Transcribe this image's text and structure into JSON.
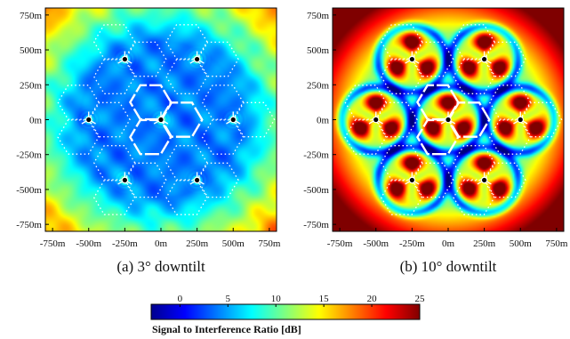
{
  "chart_data": [
    {
      "type": "heatmap",
      "caption": "(a)  3° downtilt",
      "xlim": [
        -800,
        800
      ],
      "ylim": [
        -800,
        800
      ],
      "x_ticks": [
        "-750m",
        "-500m",
        "-250m",
        "0m",
        "250m",
        "500m",
        "750m"
      ],
      "y_ticks": [
        "750m",
        "500m",
        "250m",
        "0m",
        "-250m",
        "-500m",
        "-750m"
      ],
      "base_stations_m": [
        [
          0,
          0
        ],
        [
          -250,
          433
        ],
        [
          250,
          433
        ],
        [
          -250,
          -433
        ],
        [
          250,
          -433
        ],
        [
          -500,
          0
        ],
        [
          500,
          0
        ]
      ],
      "center_sir_db": 4,
      "peak_sir_db": 8
    },
    {
      "type": "heatmap",
      "caption": "(b)  10° downtilt",
      "xlim": [
        -800,
        800
      ],
      "ylim": [
        -800,
        800
      ],
      "x_ticks": [
        "-750m",
        "-500m",
        "-250m",
        "0m",
        "250m",
        "500m",
        "750m"
      ],
      "y_ticks": [
        "750m",
        "500m",
        "250m",
        "0m",
        "-250m",
        "-500m",
        "-750m"
      ],
      "base_stations_m": [
        [
          0,
          0
        ],
        [
          -250,
          433
        ],
        [
          250,
          433
        ],
        [
          -250,
          -433
        ],
        [
          250,
          -433
        ],
        [
          -500,
          0
        ],
        [
          500,
          0
        ]
      ],
      "center_sir_db": 12,
      "peak_sir_db": 25
    }
  ],
  "colorbar": {
    "ticks": [
      "0",
      "5",
      "10",
      "15",
      "20",
      "25"
    ],
    "tick_values": [
      0,
      5,
      10,
      15,
      20,
      25
    ],
    "range_db": [
      -3,
      25
    ],
    "label": "Signal to Interference Ratio [dB]",
    "colormap": "jet"
  }
}
